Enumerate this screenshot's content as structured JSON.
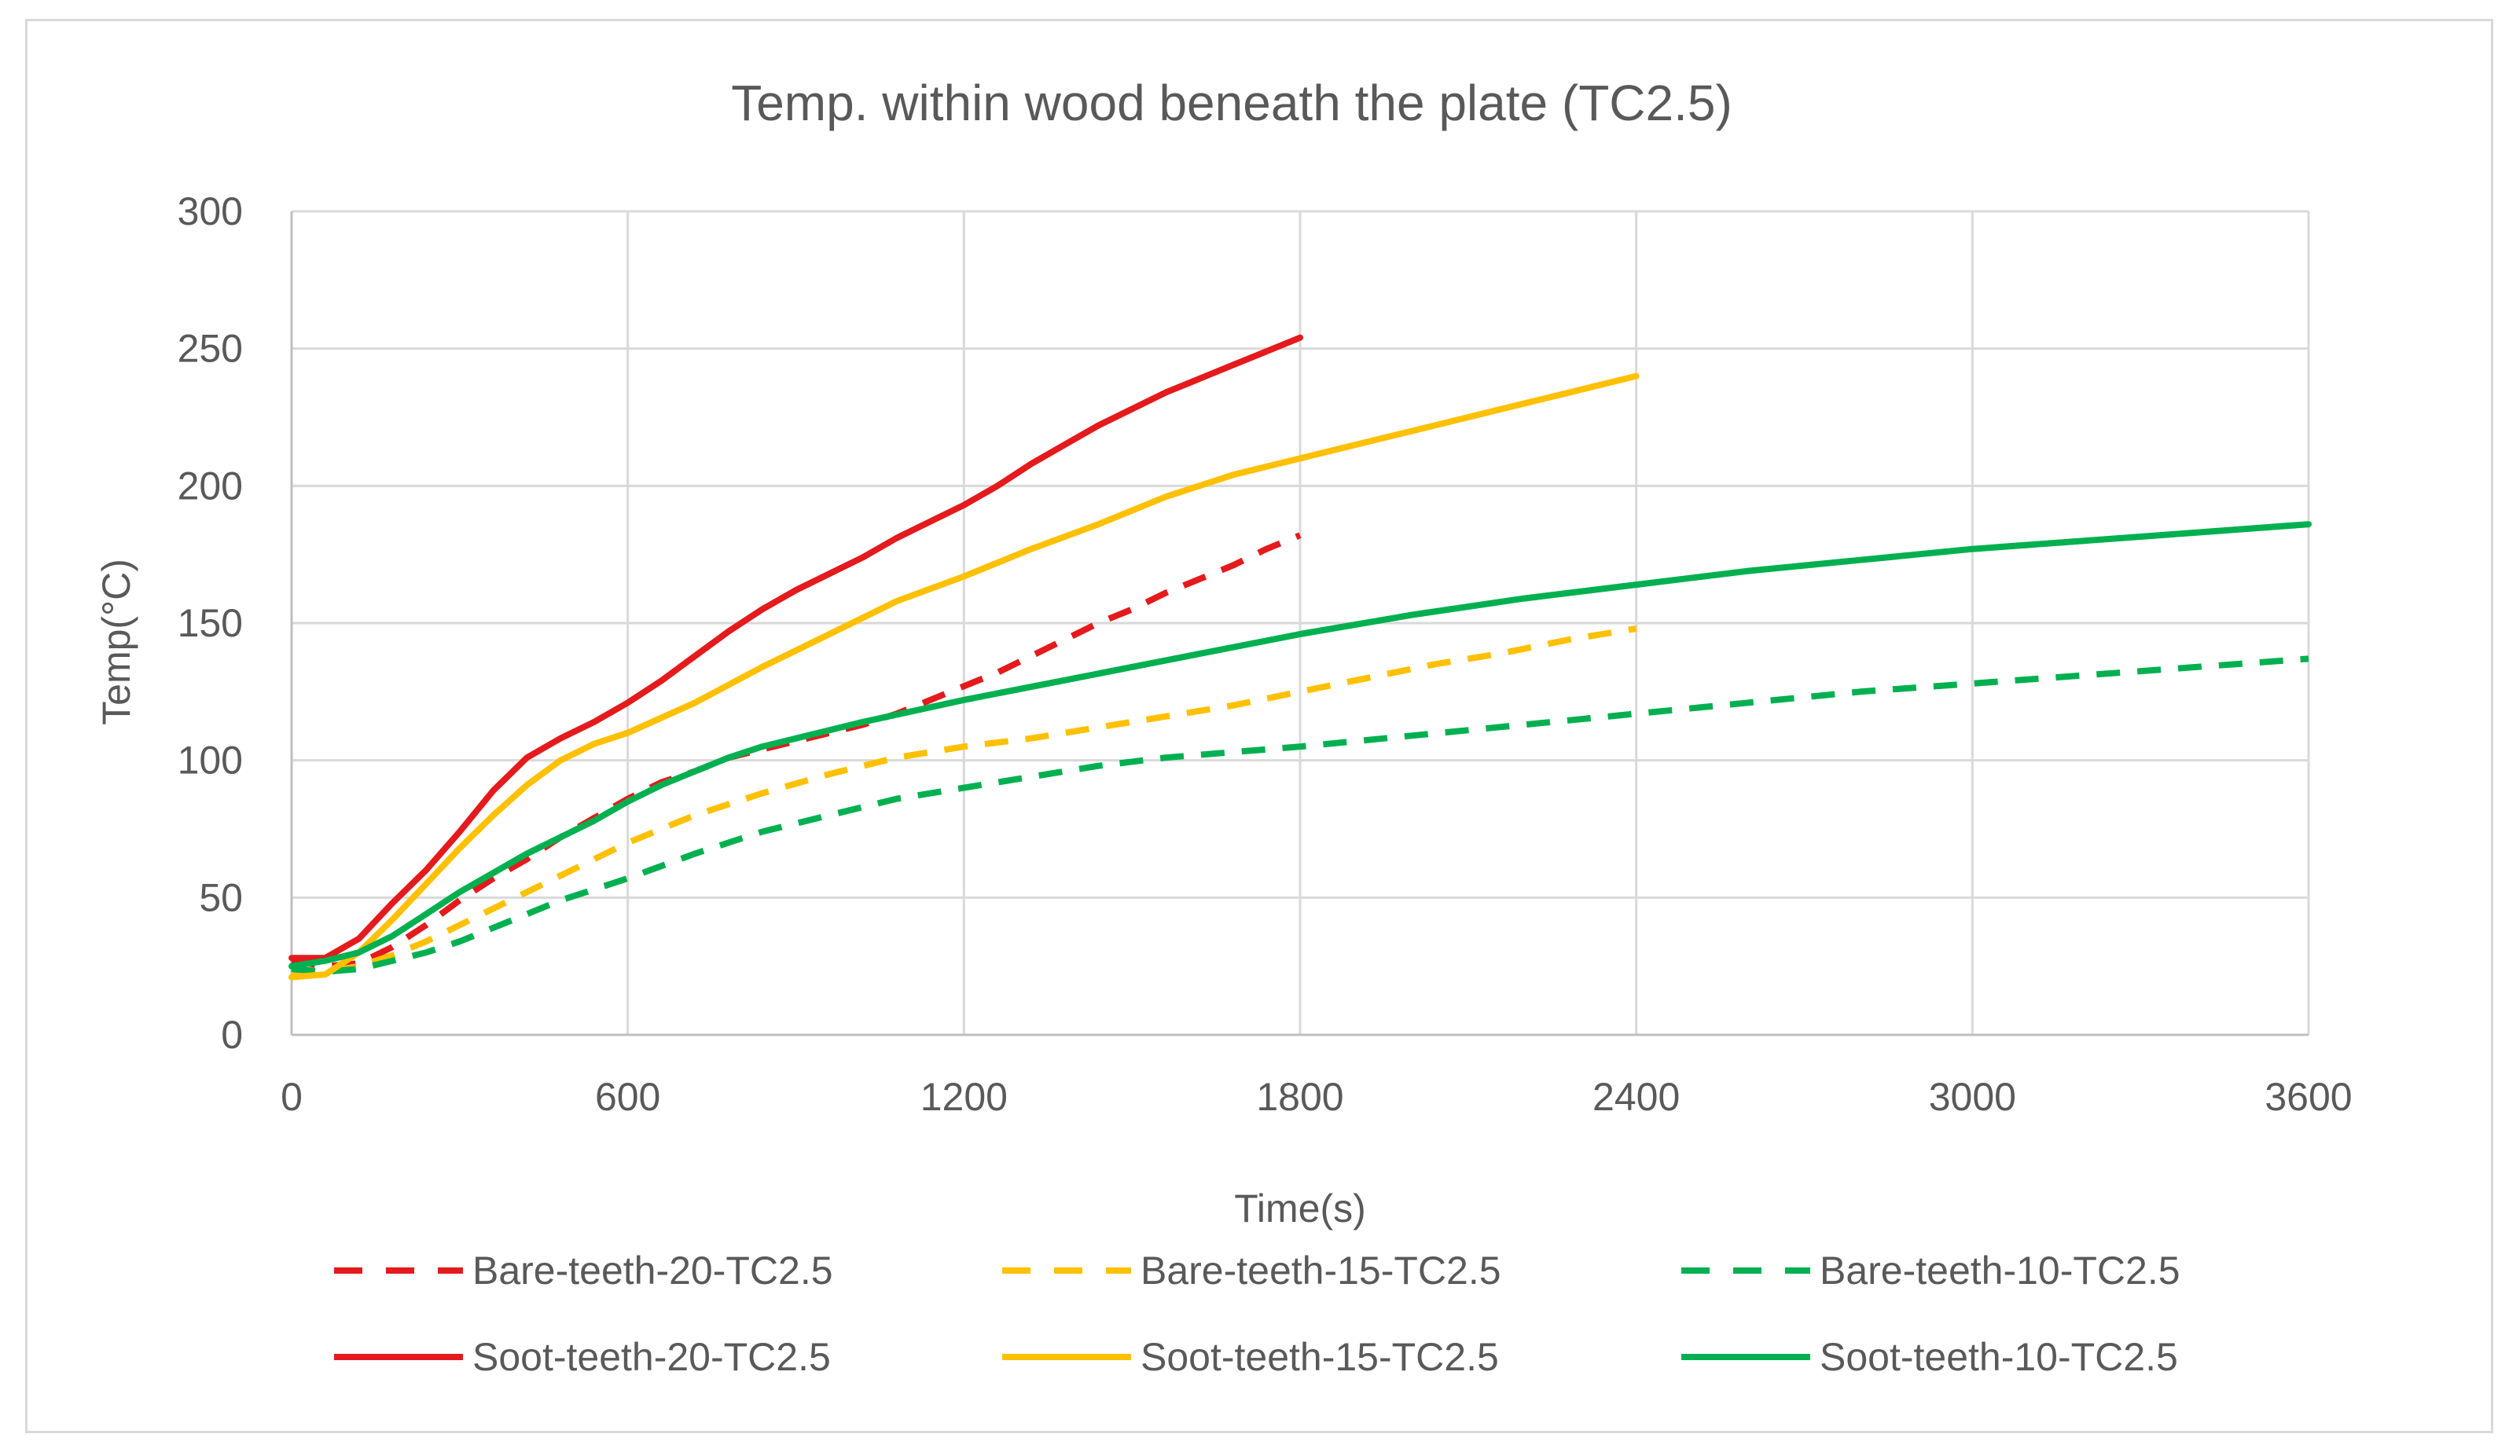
{
  "chart_data": {
    "type": "line",
    "title": "Temp. within wood beneath the plate (TC2.5)",
    "xlabel": "Time(s)",
    "ylabel": "Temp(°C)",
    "xlim": [
      0,
      3600
    ],
    "ylim": [
      0,
      300
    ],
    "x_ticks": [
      "0",
      "600",
      "1200",
      "1800",
      "2400",
      "3000",
      "3600"
    ],
    "y_ticks": [
      "0",
      "50",
      "100",
      "150",
      "200",
      "250",
      "300"
    ],
    "grid": true,
    "legend_position": "bottom",
    "series": [
      {
        "name": "Bare-teeth-20-TC2.5",
        "color": "#e41a1c",
        "dash": "dashed",
        "x": [
          0,
          60,
          120,
          180,
          240,
          300,
          360,
          420,
          480,
          540,
          600,
          660,
          720,
          780,
          840,
          900,
          960,
          1020,
          1080,
          1140,
          1200,
          1260,
          1320,
          1380,
          1440,
          1500,
          1560,
          1620,
          1680,
          1740,
          1800
        ],
        "y": [
          27,
          25,
          26,
          32,
          40,
          49,
          57,
          64,
          72,
          79,
          86,
          92,
          96,
          101,
          104,
          107,
          110,
          113,
          117,
          122,
          127,
          132,
          138,
          144,
          150,
          155,
          161,
          166,
          171,
          177,
          182
        ]
      },
      {
        "name": "Bare-teeth-15-TC2.5",
        "color": "#ffc000",
        "dash": "dashed",
        "x": [
          0,
          60,
          120,
          180,
          240,
          300,
          360,
          420,
          480,
          540,
          600,
          720,
          840,
          960,
          1080,
          1200,
          1320,
          1440,
          1560,
          1680,
          1800,
          1920,
          2040,
          2160,
          2280,
          2400
        ],
        "y": [
          22,
          23,
          25,
          29,
          34,
          40,
          46,
          52,
          58,
          64,
          70,
          80,
          88,
          95,
          101,
          105,
          108,
          112,
          116,
          120,
          125,
          130,
          135,
          139,
          144,
          148
        ]
      },
      {
        "name": "Bare-teeth-10-TC2.5",
        "color": "#00b050",
        "dash": "dashed",
        "x": [
          0,
          60,
          120,
          180,
          240,
          300,
          360,
          420,
          480,
          540,
          600,
          720,
          840,
          960,
          1080,
          1200,
          1320,
          1440,
          1560,
          1680,
          1800,
          2000,
          2200,
          2400,
          2600,
          2800,
          3000,
          3200,
          3400,
          3600
        ],
        "y": [
          24,
          23,
          24,
          27,
          30,
          34,
          39,
          44,
          49,
          53,
          57,
          66,
          74,
          80,
          86,
          90,
          94,
          98,
          101,
          103,
          105,
          109,
          113,
          117,
          121,
          125,
          128,
          131,
          134,
          137
        ]
      },
      {
        "name": "Soot-teeth-20-TC2.5",
        "color": "#e41a1c",
        "dash": "solid",
        "x": [
          0,
          60,
          120,
          180,
          240,
          300,
          360,
          420,
          480,
          540,
          600,
          660,
          720,
          780,
          840,
          900,
          960,
          1020,
          1080,
          1140,
          1200,
          1260,
          1320,
          1380,
          1440,
          1500,
          1560,
          1620,
          1680,
          1740,
          1800
        ],
        "y": [
          28,
          28,
          35,
          48,
          60,
          74,
          89,
          101,
          108,
          114,
          121,
          129,
          138,
          147,
          155,
          162,
          168,
          174,
          181,
          187,
          193,
          200,
          208,
          215,
          222,
          228,
          234,
          239,
          244,
          249,
          254
        ]
      },
      {
        "name": "Soot-teeth-15-TC2.5",
        "color": "#ffc000",
        "dash": "solid",
        "x": [
          0,
          60,
          120,
          180,
          240,
          300,
          360,
          420,
          480,
          540,
          600,
          720,
          840,
          960,
          1080,
          1200,
          1320,
          1440,
          1560,
          1680,
          1800,
          1920,
          2040,
          2160,
          2280,
          2400
        ],
        "y": [
          21,
          22,
          30,
          42,
          55,
          68,
          80,
          91,
          100,
          106,
          110,
          121,
          134,
          146,
          158,
          167,
          177,
          186,
          196,
          204,
          210,
          216,
          222,
          228,
          234,
          240
        ]
      },
      {
        "name": "Soot-teeth-10-TC2.5",
        "color": "#00b050",
        "dash": "solid",
        "x": [
          0,
          60,
          120,
          180,
          240,
          300,
          360,
          420,
          480,
          540,
          600,
          660,
          720,
          780,
          840,
          900,
          960,
          1020,
          1200,
          1400,
          1600,
          1800,
          2000,
          2200,
          2400,
          2600,
          2800,
          3000,
          3200,
          3400,
          3600
        ],
        "y": [
          25,
          27,
          30,
          36,
          44,
          52,
          59,
          66,
          72,
          78,
          85,
          91,
          96,
          101,
          105,
          108,
          111,
          114,
          122,
          130,
          138,
          146,
          153,
          159,
          164,
          169,
          173,
          177,
          180,
          183,
          186
        ]
      }
    ]
  }
}
